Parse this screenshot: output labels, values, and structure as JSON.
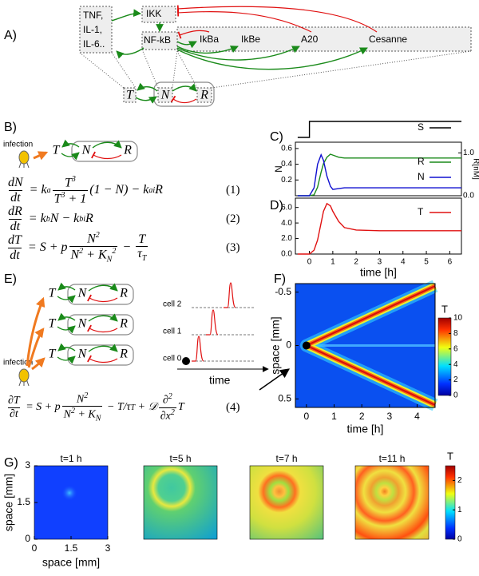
{
  "panel_labels": [
    "A)",
    "B)",
    "C)",
    "D)",
    "E)",
    "F)",
    "G)"
  ],
  "diagram_a": {
    "inputs": [
      "TNF,",
      "IL-1,",
      "IL-6.."
    ],
    "nodes": [
      "IKK",
      "NF-kB",
      "IkBa",
      "IkBe",
      "A20",
      "Cesanne"
    ],
    "summary": [
      "T",
      "N",
      "R"
    ]
  },
  "diagram_b": {
    "infection": "infection",
    "nodes": [
      "T",
      "N",
      "R"
    ]
  },
  "diagram_e": {
    "infection": "infection",
    "nodes": [
      "T",
      "N",
      "R"
    ],
    "cells": [
      "cell 2",
      "cell 1",
      "cell 0"
    ],
    "time_label": "time"
  },
  "equations": [
    {
      "parts": [
        {
          "frac": [
            "dN",
            "dt"
          ]
        },
        " = k",
        {
          "sub": "a"
        },
        {
          "frac": [
            [
              "T",
              {
                "sup": "3"
              }
            ],
            [
              "T",
              {
                "sup": "3"
              },
              " + 1"
            ]
          ]
        },
        "(1 − N) − k",
        {
          "sub": "ai"
        },
        "R"
      ],
      "number": "(1)"
    },
    {
      "parts": [
        {
          "frac": [
            "dR",
            "dt"
          ]
        },
        " = k",
        {
          "sub": "b"
        },
        "N − k",
        {
          "sub": "bi"
        },
        "R"
      ],
      "number": "(2)"
    },
    {
      "parts": [
        {
          "frac": [
            "dT",
            "dt"
          ]
        },
        " = S + p",
        {
          "frac": [
            [
              "N",
              {
                "sup": "2"
              }
            ],
            [
              "N",
              {
                "sup": "2"
              },
              " + K",
              {
                "sub": "N"
              },
              {
                "sup": "2"
              }
            ]
          ]
        },
        " − ",
        {
          "frac": [
            "T",
            [
              "τ",
              {
                "sub": "T"
              }
            ]
          ]
        }
      ],
      "number": "(3)"
    },
    {
      "parts": [
        {
          "frac": [
            "∂T",
            "∂t"
          ]
        },
        " = S + p",
        {
          "frac": [
            [
              "N",
              {
                "sup": "2"
              }
            ],
            [
              "N",
              {
                "sup": "2"
              },
              " + K",
              {
                "sub": "N"
              }
            ]
          ]
        },
        " − T/τ",
        {
          "sub": "T"
        },
        " + 𝒟",
        {
          "frac": [
            [
              "∂",
              {
                "sup": "2"
              }
            ],
            [
              "∂x",
              {
                "sup": "2"
              }
            ]
          ]
        },
        "T"
      ],
      "number": "(4)"
    }
  ],
  "chart_data": [
    {
      "type": "line",
      "x": [
        -0.5,
        0,
        0,
        6.5
      ],
      "xlim": [
        -0.6,
        6.5
      ],
      "ylim": [
        -0.3,
        1.1
      ],
      "legend": "upper right",
      "series": [
        {
          "name": "S",
          "color": "#000000",
          "values": [
            0,
            0,
            1,
            1
          ]
        }
      ]
    },
    {
      "type": "line",
      "x": [
        -0.5,
        0,
        0.2,
        0.35,
        0.5,
        0.6,
        0.75,
        0.9,
        1,
        1.25,
        1.5,
        2,
        3,
        4,
        5,
        6,
        6.5
      ],
      "xlim": [
        -0.6,
        6.5
      ],
      "ylim": [
        0,
        0.68
      ],
      "yticks": [
        0.2,
        0.4,
        0.6
      ],
      "ylabel": "N",
      "y2lim": [
        0,
        1.25
      ],
      "y2ticks": [
        {
          "value": 0,
          "label": "0.0"
        },
        {
          "value": 1,
          "label": "1.0"
        }
      ],
      "y2label": "R[nM]",
      "legend": "upper right",
      "series": [
        {
          "name": "R",
          "color": "#1a8a1a",
          "axis": "y2",
          "values": [
            0,
            0,
            0.02,
            0.2,
            0.55,
            0.75,
            0.9,
            0.97,
            0.95,
            0.9,
            0.88,
            0.88,
            0.88,
            0.88,
            0.88,
            0.88,
            0.88
          ]
        },
        {
          "name": "N",
          "color": "#1010d0",
          "values": [
            0,
            0,
            0.1,
            0.4,
            0.52,
            0.45,
            0.25,
            0.12,
            0.08,
            0.09,
            0.1,
            0.1,
            0.1,
            0.1,
            0.1,
            0.1,
            0.1
          ]
        }
      ]
    },
    {
      "type": "line",
      "x": [
        -0.5,
        0,
        0.2,
        0.35,
        0.5,
        0.6,
        0.75,
        0.9,
        1,
        1.25,
        1.5,
        2,
        3,
        4,
        5,
        6,
        6.5
      ],
      "xlim": [
        -0.6,
        6.5
      ],
      "xticks": [
        0,
        1,
        2,
        3,
        4,
        5,
        6
      ],
      "xlabel": "time [h]",
      "ylim": [
        0,
        7.2
      ],
      "yticks": [
        {
          "value": 0,
          "label": "0.0"
        },
        {
          "value": 2,
          "label": "2.0"
        },
        {
          "value": 4,
          "label": "4.0"
        },
        {
          "value": 6,
          "label": "6.0"
        }
      ],
      "legend": "upper right",
      "series": [
        {
          "name": "T",
          "color": "#e01010",
          "values": [
            0,
            0,
            0.5,
            1.8,
            4,
            5.5,
            6.5,
            6.2,
            5.5,
            4.2,
            3.4,
            3.1,
            3,
            3,
            3,
            3,
            3
          ]
        }
      ]
    },
    {
      "type": "heatmap",
      "xlim": [
        -0.4,
        4.65
      ],
      "xticks": [
        0,
        1,
        2,
        3,
        4
      ],
      "xlabel": "time [h]",
      "ylim": [
        0.58,
        -0.58
      ],
      "yticks": [
        -0.5,
        0,
        0.5
      ],
      "ylabel": "space [mm]",
      "colorbar": {
        "label": "T",
        "lim": [
          0,
          10
        ],
        "ticks": [
          0,
          2,
          4,
          6,
          8,
          10
        ]
      }
    },
    {
      "type": "heatmap_grid",
      "titles": [
        "t=1 h",
        "t=5 h",
        "t=7 h",
        "t=11 h"
      ],
      "xlim": [
        0,
        3
      ],
      "xticks": [
        0,
        1.5,
        3
      ],
      "xlabel": "space [mm]",
      "ylim": [
        0,
        3
      ],
      "yticks": [
        0,
        1.5,
        3
      ],
      "ylabel": "space [mm]",
      "colorbar": {
        "label": "T",
        "lim": [
          0,
          2.5
        ],
        "ticks": [
          0,
          1,
          2
        ]
      }
    }
  ]
}
